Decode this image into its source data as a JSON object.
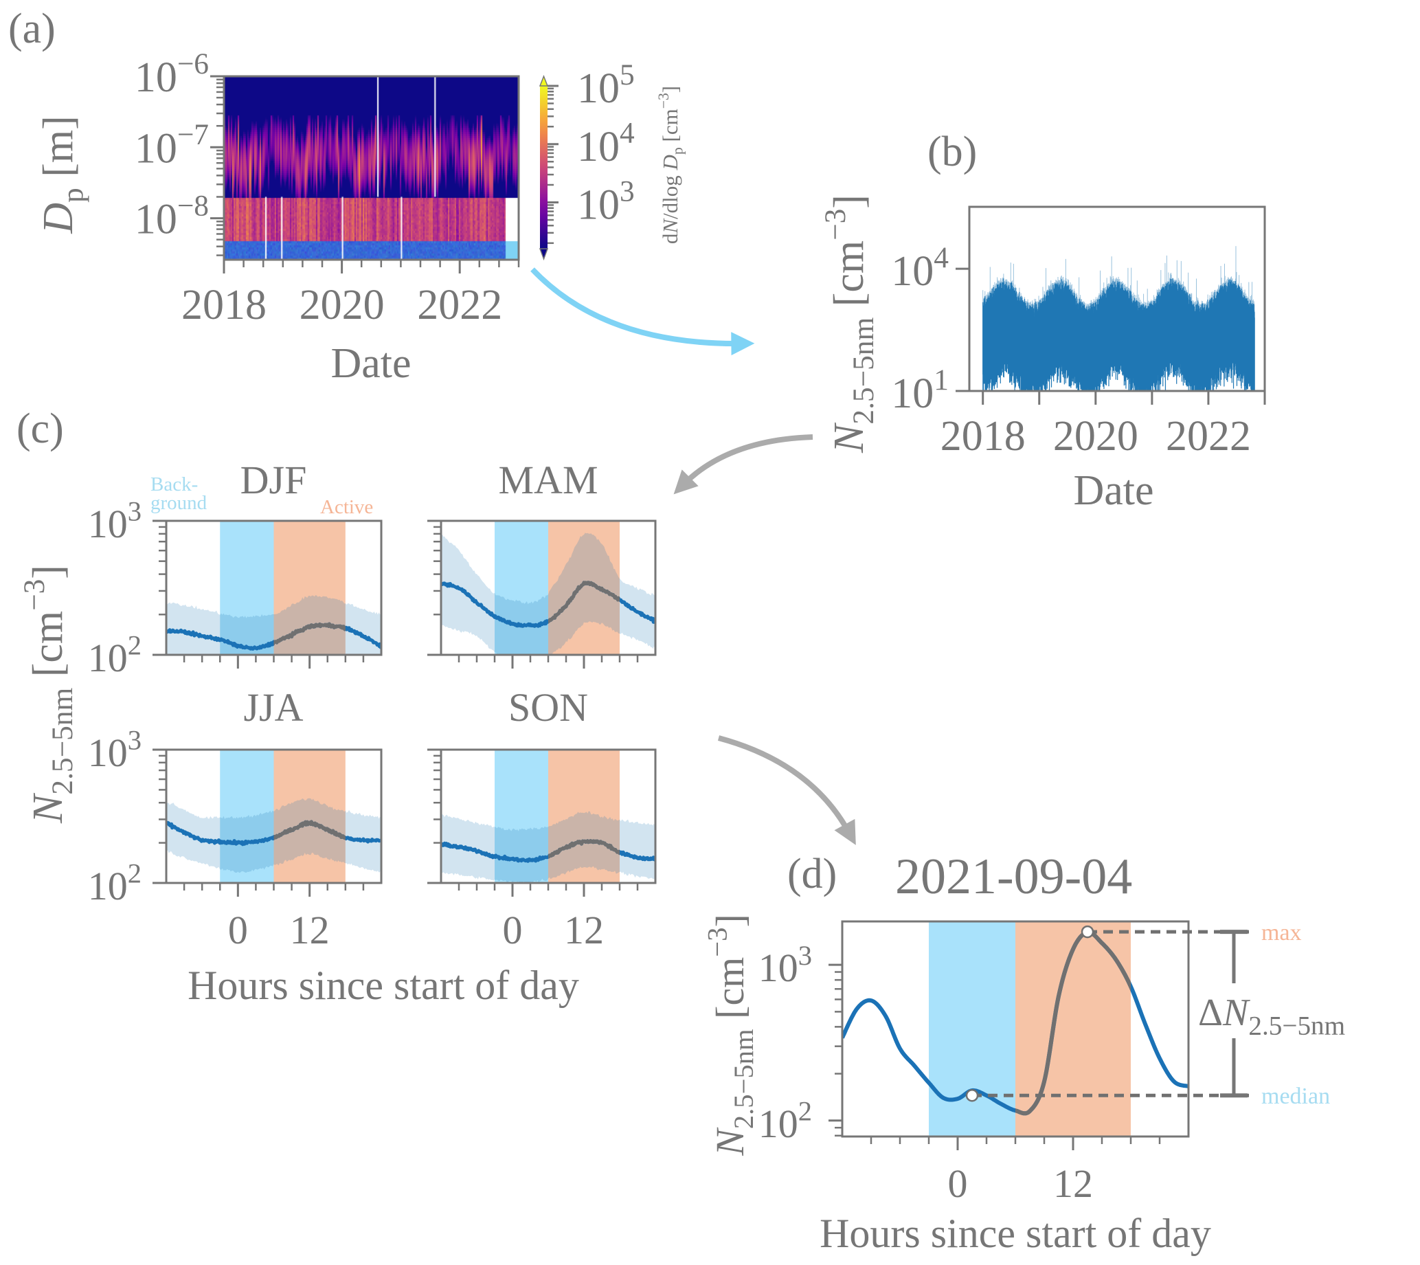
{
  "panel_labels": {
    "a": "(a)",
    "b": "(b)",
    "c": "(c)",
    "d": "(d)"
  },
  "colors": {
    "text": "#767676",
    "line_blue": "#1b72b6",
    "line_active": "#707070",
    "background_window": "#a9e2fb",
    "active_window": "#f6c4a7",
    "quantile_band": "#1f77b4",
    "arrow_blue": "#7fd3f5",
    "arrow_gray": "#ababab",
    "max_label": "#f5b596",
    "median_label": "#a6dcf1"
  },
  "chart_data": [
    {
      "panel": "a",
      "type": "heatmap",
      "xlabel": "Date",
      "ylabel": "*{D}_{p} [m]",
      "xticks": [
        "2018",
        "2020",
        "2022"
      ],
      "yticks": [
        "10^{−6}",
        "10^{−7}",
        "10^{−8}"
      ],
      "yscale": "log",
      "xlim": [
        2018.0,
        2023.0
      ],
      "ylim": [
        2.6e-09,
        1e-06
      ],
      "colormap": "plasma",
      "colorbar": {
        "label": "d*{N}/dlog *{D}_{p} [cm^{−3}]",
        "ticks": [
          "10^{3}",
          "10^{4}",
          "10^{5}"
        ],
        "range": [
          160,
          100000
        ],
        "extend": "both"
      },
      "instrument_boundaries_m": [
        5e-09,
        2e-08
      ],
      "gaps_upper_range": [
        2020.6,
        2021.57
      ],
      "gaps_lower_range": [
        2018.7,
        2018.97,
        2020.0,
        2021.0
      ],
      "lower_range_end": 2022.76
    },
    {
      "panel": "b",
      "type": "line",
      "xlabel": "Date",
      "ylabel": "*{N}_{2.5−5nm} [cm^{−3}]",
      "xticks": [
        "2018",
        "2020",
        "2022"
      ],
      "yticks": [
        "10^{1}",
        "10^{4}"
      ],
      "yscale": "log",
      "xlim": [
        2017.76,
        2023.0
      ],
      "ylim": [
        10,
        330000
      ],
      "data_range": [
        2018.0,
        2022.82
      ]
    },
    {
      "panel": "c",
      "type": "line",
      "xlabel": "Hours since start of day",
      "ylabel": "*{N}_{2.5−5nm} [cm^{−3}]",
      "xticks": [
        "0",
        "12"
      ],
      "yticks": [
        "10^{2}",
        "10^{3}"
      ],
      "yscale": "log",
      "xlim": [
        -12,
        24
      ],
      "ylim": [
        100,
        1000
      ],
      "background_window": [
        -3,
        6
      ],
      "active_window": [
        6,
        18
      ],
      "background_label": [
        "Back-",
        "ground"
      ],
      "active_label": "Active",
      "hours": [
        -12,
        -9,
        -6,
        -3,
        0,
        3,
        6,
        9,
        12,
        15,
        18,
        21,
        24
      ],
      "subplots": [
        {
          "title": "DJF",
          "median": [
            151,
            148,
            138,
            130,
            117,
            112,
            123,
            141,
            162,
            166,
            158,
            138,
            115
          ],
          "upper": [
            245,
            234,
            219,
            204,
            191,
            195,
            200,
            234,
            275,
            269,
            245,
            219,
            200
          ],
          "lower": [
            92,
            90,
            88,
            86,
            85,
            85,
            88,
            92,
            96,
            95,
            92,
            89,
            86
          ]
        },
        {
          "title": "MAM",
          "median": [
            339,
            316,
            245,
            195,
            170,
            166,
            178,
            234,
            339,
            309,
            257,
            209,
            178
          ],
          "upper": [
            794,
            603,
            398,
            288,
            257,
            245,
            288,
            468,
            794,
            676,
            372,
            316,
            275
          ],
          "lower": [
            170,
            151,
            138,
            105,
            95,
            95,
            100,
            123,
            170,
            170,
            145,
            129,
            112
          ]
        },
        {
          "title": "JJA",
          "median": [
            282,
            240,
            209,
            204,
            200,
            204,
            219,
            251,
            282,
            251,
            219,
            209,
            209
          ],
          "upper": [
            407,
            355,
            309,
            309,
            309,
            324,
            347,
            398,
            427,
            380,
            347,
            324,
            309
          ],
          "lower": [
            174,
            155,
            141,
            129,
            120,
            126,
            135,
            151,
            166,
            151,
            141,
            129,
            120
          ]
        },
        {
          "title": "SON",
          "median": [
            195,
            186,
            174,
            158,
            151,
            148,
            158,
            186,
            204,
            200,
            170,
            155,
            151
          ],
          "upper": [
            324,
            302,
            282,
            263,
            251,
            257,
            263,
            302,
            339,
            316,
            295,
            282,
            275
          ],
          "lower": [
            120,
            115,
            110,
            105,
            102,
            102,
            107,
            120,
            132,
            126,
            120,
            112,
            107
          ]
        }
      ]
    },
    {
      "panel": "d",
      "type": "line",
      "title": "2021-09-04",
      "xlabel": "Hours since start of day",
      "ylabel": "*{N}_{2.5−5nm} [cm^{−3}]",
      "xticks": [
        "0",
        "12"
      ],
      "yticks": [
        "10^{2}",
        "10^{3}"
      ],
      "yscale": "log",
      "xlim": [
        -12,
        24
      ],
      "ylim": [
        79,
        1900
      ],
      "background_window": [
        -3,
        6
      ],
      "active_window": [
        6,
        18
      ],
      "hours": [
        -12,
        -10.5,
        -9,
        -7.5,
        -6,
        -4.5,
        -3,
        -1.5,
        0,
        1.5,
        3,
        4.5,
        6,
        7.5,
        9,
        10.5,
        12,
        13.5,
        15,
        16.5,
        18,
        19.5,
        21,
        22.5,
        24
      ],
      "values": [
        340,
        520,
        590,
        470,
        290,
        225,
        175,
        140,
        138,
        156,
        145,
        128,
        116,
        115,
        178,
        630,
        1260,
        1620,
        1380,
        1070,
        725,
        417,
        251,
        178,
        166
      ],
      "markers": [
        {
          "hour": 1.5,
          "value": 145
        },
        {
          "hour": 13.5,
          "value": 1630
        }
      ],
      "max_label": "max",
      "median_label": "median",
      "delta_label": "Δ*{N}_{2.5−5nm}",
      "max_value": 1630,
      "median_value": 145
    }
  ]
}
